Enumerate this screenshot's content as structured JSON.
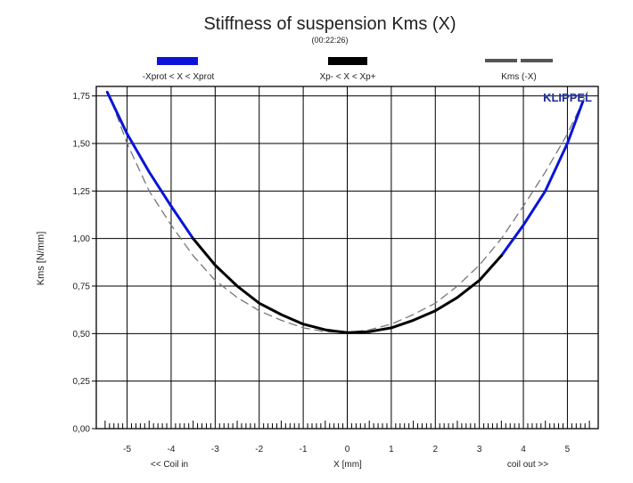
{
  "chart_data": {
    "type": "line",
    "title": "Stiffness of suspension Kms (X)",
    "subtitle": "(00:22:26)",
    "brand": "KLIPPEL",
    "xlabel": "X [mm]",
    "ylabel": "Kms [N/mm]",
    "x_note_left": "<< Coil in",
    "x_note_right": "coil out >>",
    "xlim": [
      -5.7,
      5.7
    ],
    "ylim": [
      0,
      1.8
    ],
    "xticks": [
      "-5",
      "-4",
      "-3",
      "-2",
      "-1",
      "0",
      "1",
      "2",
      "3",
      "4",
      "5"
    ],
    "yticks": [
      "0,00",
      "0,25",
      "0,50",
      "0,75",
      "1,00",
      "1,25",
      "1,50",
      "1,75"
    ],
    "grid": true,
    "legend": [
      {
        "label": "-Xprot < X < Xprot",
        "color": "#0a14d8",
        "style": "solid"
      },
      {
        "label": "Xp- < X < Xp+",
        "color": "#000000",
        "style": "solid"
      },
      {
        "label": "Kms (-X)",
        "color": "#555555",
        "style": "dashed"
      }
    ],
    "series": [
      {
        "color": "#0a14d8",
        "x": [
          -5.45,
          -5.0,
          -4.5,
          -4.0,
          -3.5,
          3.5,
          4.0,
          4.5,
          5.0,
          5.35
        ],
        "y": [
          1.77,
          1.55,
          1.35,
          1.17,
          1.0,
          0.91,
          1.07,
          1.25,
          1.5,
          1.72
        ]
      },
      {
        "color": "#000000",
        "x": [
          -3.5,
          -3.0,
          -2.5,
          -2.0,
          -1.5,
          -1.0,
          -0.5,
          0.0,
          0.5,
          1.0,
          1.5,
          2.0,
          2.5,
          3.0,
          3.5
        ],
        "y": [
          1.0,
          0.86,
          0.75,
          0.66,
          0.6,
          0.55,
          0.52,
          0.505,
          0.51,
          0.53,
          0.57,
          0.62,
          0.69,
          0.78,
          0.91
        ]
      },
      {
        "color": "#777777",
        "x": [
          -5.35,
          -5.0,
          -4.5,
          -4.0,
          -3.5,
          -3.0,
          -2.5,
          -2.0,
          -1.5,
          -1.0,
          -0.5,
          0.0,
          0.5,
          1.0,
          1.5,
          2.0,
          2.5,
          3.0,
          3.5,
          4.0,
          4.5,
          5.0,
          5.45
        ],
        "y": [
          1.72,
          1.5,
          1.25,
          1.07,
          0.91,
          0.78,
          0.69,
          0.62,
          0.57,
          0.53,
          0.51,
          0.505,
          0.52,
          0.55,
          0.6,
          0.66,
          0.75,
          0.86,
          1.0,
          1.17,
          1.35,
          1.55,
          1.77
        ]
      }
    ]
  }
}
